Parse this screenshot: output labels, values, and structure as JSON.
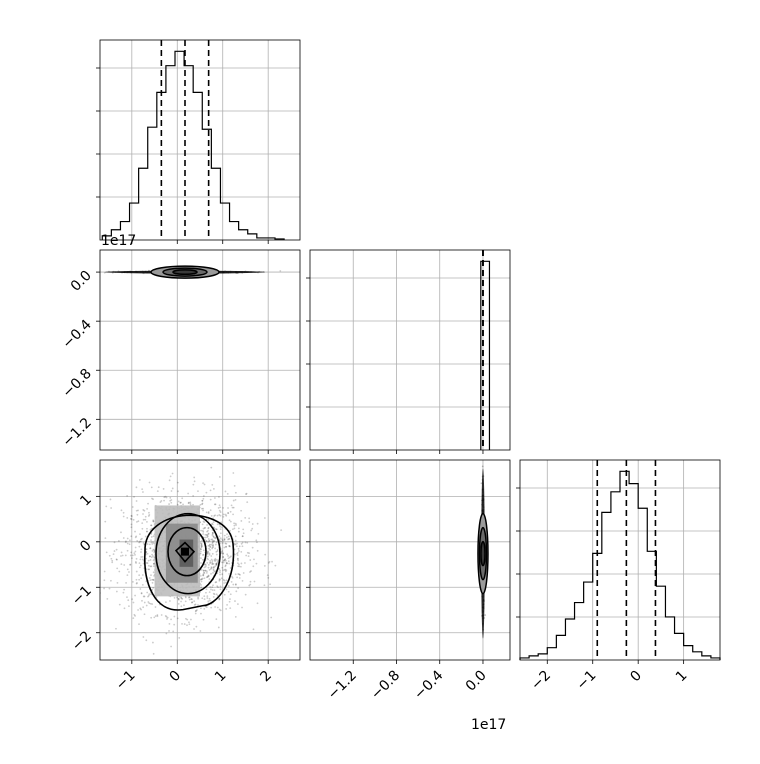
{
  "chart_data": [
    {
      "type": "histogram",
      "panel": "diag-1",
      "xlim": [
        -1.7,
        2.7
      ],
      "bins": [
        -1.55,
        -1.35,
        -1.15,
        -0.95,
        -0.75,
        -0.55,
        -0.35,
        -0.15,
        0.05,
        0.25,
        0.45,
        0.65,
        0.85,
        1.05,
        1.25,
        1.45,
        1.65,
        1.85,
        2.05,
        2.25
      ],
      "counts": [
        0.02,
        0.05,
        0.09,
        0.18,
        0.35,
        0.55,
        0.72,
        0.85,
        0.92,
        0.85,
        0.72,
        0.54,
        0.35,
        0.18,
        0.09,
        0.05,
        0.03,
        0.01,
        0.01,
        0.005
      ],
      "quantiles": [
        -0.35,
        0.17,
        0.69
      ]
    },
    {
      "type": "scatter-contour",
      "panel": "p21",
      "xlim": [
        -1.7,
        2.7
      ],
      "ylim": [
        -1.45,
        0.18
      ],
      "yticks": [
        "0.0",
        "−0.4",
        "−0.8",
        "−1.2"
      ],
      "yoffset_label": "1e17",
      "center": [
        0.17,
        0.0
      ],
      "x_spread": 0.7
    },
    {
      "type": "histogram",
      "panel": "diag-2",
      "xlim": [
        -1.6,
        0.25
      ],
      "bins": [
        0.02
      ],
      "counts": [
        1.0
      ],
      "quantiles": [
        0.0,
        0.0,
        0.0
      ]
    },
    {
      "type": "scatter-contour",
      "panel": "p31",
      "xlim": [
        -1.7,
        2.7
      ],
      "ylim": [
        -2.6,
        1.8
      ],
      "xticks": [
        "−1",
        "0",
        "1",
        "2"
      ],
      "yticks": [
        "1",
        "0",
        "−1",
        "−2"
      ],
      "center": [
        0.17,
        -0.26
      ],
      "spread": [
        0.67,
        0.65
      ]
    },
    {
      "type": "scatter-contour",
      "panel": "p32",
      "xlim": [
        -1.6,
        0.25
      ],
      "ylim": [
        -2.6,
        1.8
      ],
      "xticks": [
        "−1.2",
        "−0.8",
        "−0.4",
        "0.0"
      ],
      "xoffset_label": "1e17",
      "center": [
        0.0,
        -0.26
      ],
      "spread": [
        0.0,
        0.65
      ]
    },
    {
      "type": "histogram",
      "panel": "diag-3",
      "xlim": [
        -2.6,
        1.8
      ],
      "xticks": [
        "−2",
        "−1",
        "0",
        "1"
      ],
      "bins": [
        -2.5,
        -2.3,
        -2.1,
        -1.9,
        -1.7,
        -1.5,
        -1.3,
        -1.1,
        -0.9,
        -0.7,
        -0.5,
        -0.3,
        -0.1,
        0.1,
        0.3,
        0.5,
        0.7,
        0.9,
        1.1,
        1.3,
        1.5,
        1.7
      ],
      "counts": [
        0.01,
        0.02,
        0.03,
        0.06,
        0.12,
        0.2,
        0.28,
        0.38,
        0.52,
        0.72,
        0.82,
        0.92,
        0.86,
        0.74,
        0.53,
        0.36,
        0.21,
        0.13,
        0.07,
        0.04,
        0.02,
        0.01
      ],
      "quantiles": [
        -0.9,
        -0.26,
        0.38
      ]
    }
  ],
  "labels": {
    "offset_top": "1e17",
    "offset_bottom": "1e17"
  }
}
